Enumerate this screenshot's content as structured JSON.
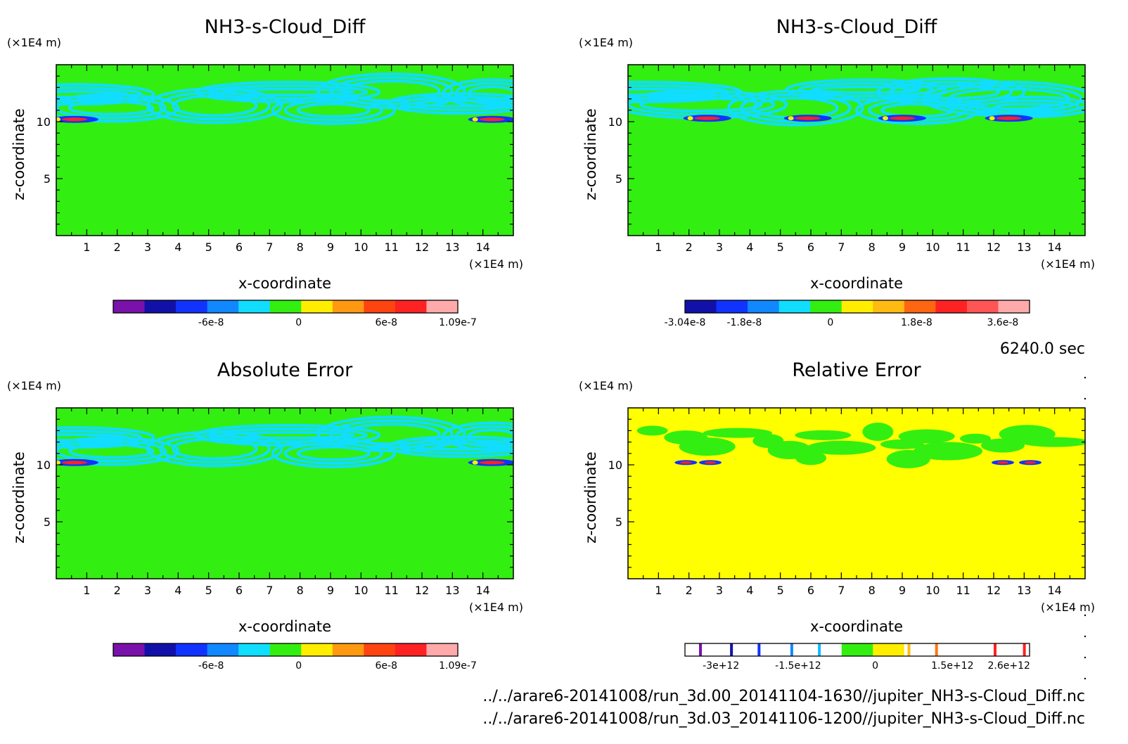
{
  "time_label": "6240.0 sec",
  "file_lines": [
    "../../arare6-20141008/run_3d.00_20141104-1630//jupiter_NH3-s-Cloud_Diff.nc",
    "../../arare6-20141008/run_3d.03_20141106-1200//jupiter_NH3-s-Cloud_Diff.nc"
  ],
  "colors": {
    "green": "#33ee11",
    "yellow": "#ffff00",
    "cyan": "#11ddff",
    "frame": "#000000"
  },
  "chart_data": [
    {
      "type": "heatmap",
      "title": "NH3-s-Cloud_Diff",
      "xlabel": "x-coordinate",
      "ylabel": "z-coordinate",
      "x_unit": "(×1E4 m)",
      "y_unit": "(×1E4 m)",
      "xlim": [
        0,
        15
      ],
      "ylim": [
        0,
        15
      ],
      "x_ticks": [
        1,
        2,
        3,
        4,
        5,
        6,
        7,
        8,
        9,
        10,
        11,
        12,
        13,
        14
      ],
      "y_ticks": [
        5,
        10
      ],
      "background": "#33ee11",
      "features": "cyan contours near z=10-13, small blue/red cores near x=0.5 and x=14.5 at z≈10",
      "colorbar": {
        "colors": [
          "#7a11aa",
          "#1111aa",
          "#1133ff",
          "#1188ff",
          "#11ddff",
          "#33ee11",
          "#ffee00",
          "#ff9911",
          "#ff4411",
          "#ff2222",
          "#ffaaaa"
        ],
        "ticks": [
          {
            "v": -6e-08,
            "label": "-6e-8"
          },
          {
            "v": 0,
            "label": "0"
          },
          {
            "v": 6e-08,
            "label": "6e-8"
          },
          {
            "v": 1.09e-07,
            "label": "1.09e-7"
          }
        ],
        "min": -1.27e-07,
        "max": 1.09e-07
      }
    },
    {
      "type": "heatmap",
      "title": "NH3-s-Cloud_Diff",
      "xlabel": "x-coordinate",
      "ylabel": "z-coordinate",
      "x_unit": "(×1E4 m)",
      "y_unit": "(×1E4 m)",
      "xlim": [
        0,
        15
      ],
      "ylim": [
        0,
        15
      ],
      "x_ticks": [
        1,
        2,
        3,
        4,
        5,
        6,
        7,
        8,
        9,
        10,
        11,
        12,
        13,
        14
      ],
      "y_ticks": [
        5,
        10
      ],
      "background": "#33ee11",
      "features": "cyan contours near z=10-13, blue/red cores near x=2.5 and x=12.5 at z≈10.3",
      "colorbar": {
        "colors": [
          "#1111aa",
          "#1133ff",
          "#1188ff",
          "#11ddff",
          "#33ee11",
          "#ffee00",
          "#ffbb11",
          "#ff6611",
          "#ff2222",
          "#ff5555",
          "#ffaaaa"
        ],
        "ticks": [
          {
            "v": -3.04e-08,
            "label": "-3.04e-8"
          },
          {
            "v": -1.8e-08,
            "label": "-1.8e-8"
          },
          {
            "v": 0,
            "label": "0"
          },
          {
            "v": 1.8e-08,
            "label": "1.8e-8"
          },
          {
            "v": 3.6e-08,
            "label": "3.6e-8"
          }
        ],
        "min": -3.04e-08,
        "max": 4.16e-08
      }
    },
    {
      "type": "heatmap",
      "title": "Absolute Error",
      "xlabel": "x-coordinate",
      "ylabel": "z-coordinate",
      "x_unit": "(×1E4 m)",
      "y_unit": "(×1E4 m)",
      "xlim": [
        0,
        15
      ],
      "ylim": [
        0,
        15
      ],
      "x_ticks": [
        1,
        2,
        3,
        4,
        5,
        6,
        7,
        8,
        9,
        10,
        11,
        12,
        13,
        14
      ],
      "y_ticks": [
        5,
        10
      ],
      "background": "#33ee11",
      "features": "cyan contours near z=10-13, blue/red cores near x=0.5 and x=14.5 at z≈10",
      "colorbar": {
        "colors": [
          "#7a11aa",
          "#1111aa",
          "#1133ff",
          "#1188ff",
          "#11ddff",
          "#33ee11",
          "#ffee00",
          "#ff9911",
          "#ff4411",
          "#ff2222",
          "#ffaaaa"
        ],
        "ticks": [
          {
            "v": -6e-08,
            "label": "-6e-8"
          },
          {
            "v": 0,
            "label": "0"
          },
          {
            "v": 6e-08,
            "label": "6e-8"
          },
          {
            "v": 1.09e-07,
            "label": "1.09e-7"
          }
        ],
        "min": -1.27e-07,
        "max": 1.09e-07
      }
    },
    {
      "type": "heatmap",
      "title": "Relative Error",
      "xlabel": "x-coordinate",
      "ylabel": "z-coordinate",
      "x_unit": "(×1E4 m)",
      "y_unit": "(×1E4 m)",
      "xlim": [
        0,
        15
      ],
      "ylim": [
        0,
        15
      ],
      "x_ticks": [
        1,
        2,
        3,
        4,
        5,
        6,
        7,
        8,
        9,
        10,
        11,
        12,
        13,
        14
      ],
      "y_ticks": [
        5,
        10
      ],
      "background": "#ffff00",
      "features": "green patches near z=10-13, small blue/red cores near x=2-3 and x=12-14 at z≈10",
      "colorbar": {
        "colors": [
          "#ffffff",
          "#ffffff",
          "#ffffff",
          "#ffffff",
          "#ffffff",
          "#33ee11",
          "#ffee00",
          "#ffffff",
          "#ffffff",
          "#ffffff",
          "#ffffff"
        ],
        "marks": [
          {
            "pos": 0.045,
            "color": "#7a11aa"
          },
          {
            "pos": 0.135,
            "color": "#1111aa"
          },
          {
            "pos": 0.215,
            "color": "#1133ff"
          },
          {
            "pos": 0.31,
            "color": "#1188ff"
          },
          {
            "pos": 0.39,
            "color": "#11bbff"
          },
          {
            "pos": 0.65,
            "color": "#ffbb11"
          },
          {
            "pos": 0.73,
            "color": "#ff7711"
          },
          {
            "pos": 0.9,
            "color": "#ff2222"
          },
          {
            "pos": 0.985,
            "color": "#ff2222"
          }
        ],
        "ticks": [
          {
            "v": -3000000000000.0,
            "label": "-3e+12"
          },
          {
            "v": -1500000000000.0,
            "label": "-1.5e+12"
          },
          {
            "v": 0,
            "label": "0"
          },
          {
            "v": 1500000000000.0,
            "label": "1.5e+12"
          },
          {
            "v": 2600000000000.0,
            "label": "2.6e+12"
          }
        ],
        "min": -3700000000000.0,
        "max": 3000000000000.0
      }
    }
  ]
}
